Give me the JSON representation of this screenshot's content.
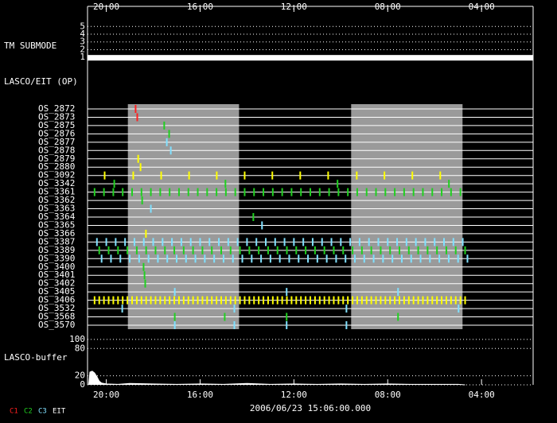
{
  "chart_data": {
    "type": "timeline",
    "xlim": [
      20.8,
      1.8
    ],
    "xticks": [
      {
        "value": 20,
        "label": "20:00"
      },
      {
        "value": 16,
        "label": "16:00"
      },
      {
        "value": 12,
        "label": "12:00"
      },
      {
        "value": 8,
        "label": "08:00"
      },
      {
        "value": 4,
        "label": "04:00"
      }
    ],
    "date_label": "2006/06/23 15:06:00.000",
    "submode": {
      "label": "TM SUBMODE",
      "ylim": [
        0.4,
        7.6
      ],
      "yticks": [
        1,
        2,
        3,
        4,
        5
      ],
      "segments": [
        {
          "start": 20.8,
          "end": 1.8,
          "value": 1
        }
      ],
      "color": "#ffffff"
    },
    "op": {
      "label": "LASCO/EIT (OP)",
      "shade_color": "#9a9a9a",
      "shaded": [
        [
          19.08,
          14.34
        ],
        [
          9.56,
          4.81
        ]
      ],
      "rows": [
        {
          "name": "OS_2872",
          "color": "#ff2020",
          "events": [
            18.75
          ]
        },
        {
          "name": "OS_2873",
          "color": "#ff2020",
          "events": [
            18.68
          ]
        },
        {
          "name": "OS_2875",
          "color": "#20d020",
          "events": [
            17.53
          ]
        },
        {
          "name": "OS_2876",
          "color": "#20d020",
          "events": [
            17.32
          ]
        },
        {
          "name": "OS_2877",
          "color": "#80e0ff",
          "events": [
            17.42
          ]
        },
        {
          "name": "OS_2878",
          "color": "#80e0ff",
          "events": [
            17.25
          ]
        },
        {
          "name": "OS_2879",
          "color": "#ffff00",
          "events": [
            18.64
          ]
        },
        {
          "name": "OS_2880",
          "color": "#ffff00",
          "events": [
            18.54
          ]
        },
        {
          "name": "OS_3092",
          "color": "#ffff00",
          "events": [
            20.07,
            18.85,
            17.66,
            16.47,
            15.29,
            14.1,
            12.92,
            11.73,
            10.54,
            9.32,
            8.14,
            6.95,
            5.76
          ]
        },
        {
          "name": "OS_3342",
          "color": "#20d020",
          "events": [
            19.66,
            14.92,
            10.14,
            5.39
          ]
        },
        {
          "name": "OS_3361",
          "color": "#20d020",
          "events": [
            20.5,
            20.1,
            19.7,
            19.3,
            18.9,
            18.5,
            18.1,
            17.7,
            17.3,
            16.9,
            16.5,
            16.1,
            15.7,
            15.3,
            14.9,
            14.5,
            14.1,
            13.7,
            13.3,
            12.9,
            12.5,
            12.1,
            11.7,
            11.3,
            10.9,
            10.5,
            10.1,
            9.7,
            9.3,
            8.9,
            8.5,
            8.1,
            7.7,
            7.3,
            6.9,
            6.5,
            6.1,
            5.7,
            5.3,
            4.9
          ]
        },
        {
          "name": "OS_3362",
          "color": "#20d020",
          "events": [
            18.47
          ]
        },
        {
          "name": "OS_3363",
          "color": "#80e0ff",
          "events": [
            18.1
          ]
        },
        {
          "name": "OS_3364",
          "color": "#20d020",
          "events": [
            13.73
          ]
        },
        {
          "name": "OS_3365",
          "color": "#80e0ff",
          "events": [
            13.36
          ]
        },
        {
          "name": "OS_3366",
          "color": "#ffff00",
          "events": [
            18.31
          ]
        },
        {
          "name": "OS_3387",
          "color": "#80e0ff",
          "events": [
            20.4,
            20.0,
            19.6,
            19.2,
            18.8,
            18.4,
            18.0,
            17.6,
            17.2,
            16.8,
            16.4,
            16.0,
            15.6,
            15.2,
            14.8,
            14.4,
            14.0,
            13.6,
            13.2,
            12.8,
            12.4,
            12.0,
            11.6,
            11.2,
            10.8,
            10.4,
            10.0,
            9.6,
            9.2,
            8.8,
            8.4,
            8.0,
            7.6,
            7.2,
            6.8,
            6.4,
            6.0,
            5.6,
            5.2,
            4.8
          ]
        },
        {
          "name": "OS_3389",
          "color": "#20d020",
          "events": [
            20.3,
            19.9,
            19.5,
            19.1,
            18.7,
            18.3,
            17.9,
            17.5,
            17.1,
            16.7,
            16.3,
            15.9,
            15.5,
            15.1,
            14.7,
            14.3,
            13.9,
            13.5,
            13.1,
            12.7,
            12.3,
            11.9,
            11.5,
            11.1,
            10.7,
            10.3,
            9.9,
            9.5,
            9.1,
            8.7,
            8.3,
            7.9,
            7.5,
            7.1,
            6.7,
            6.3,
            5.9,
            5.5,
            5.1,
            4.7
          ]
        },
        {
          "name": "OS_3390",
          "color": "#80e0ff",
          "events": [
            20.2,
            19.8,
            19.4,
            19.0,
            18.6,
            18.2,
            17.8,
            17.4,
            17.0,
            16.6,
            16.2,
            15.8,
            15.4,
            15.0,
            14.6,
            14.2,
            13.8,
            13.4,
            13.0,
            12.6,
            12.2,
            11.8,
            11.4,
            11.0,
            10.6,
            10.2,
            9.8,
            9.4,
            9.0,
            8.6,
            8.2,
            7.8,
            7.4,
            7.0,
            6.6,
            6.2,
            5.8,
            5.4,
            5.0,
            4.6
          ]
        },
        {
          "name": "OS_3400",
          "color": "#20d020",
          "events": [
            18.41
          ]
        },
        {
          "name": "OS_3401",
          "color": "#20d020",
          "events": [
            18.37
          ]
        },
        {
          "name": "OS_3402",
          "color": "#20d020",
          "events": [
            18.34
          ]
        },
        {
          "name": "OS_3405",
          "color": "#80e0ff",
          "events": [
            17.08,
            12.31,
            7.56
          ]
        },
        {
          "name": "OS_3406",
          "color": "#ffff00",
          "events": [
            20.5,
            20.3,
            20.1,
            19.9,
            19.7,
            19.5,
            19.3,
            19.1,
            18.9,
            18.7,
            18.5,
            18.3,
            18.1,
            17.9,
            17.7,
            17.5,
            17.3,
            17.1,
            16.9,
            16.7,
            16.5,
            16.3,
            16.1,
            15.9,
            15.7,
            15.5,
            15.3,
            15.1,
            14.9,
            14.7,
            14.5,
            14.3,
            14.1,
            13.9,
            13.7,
            13.5,
            13.3,
            13.1,
            12.9,
            12.7,
            12.5,
            12.3,
            12.1,
            11.9,
            11.7,
            11.5,
            11.3,
            11.1,
            10.9,
            10.7,
            10.5,
            10.3,
            10.1,
            9.9,
            9.7,
            9.5,
            9.3,
            9.1,
            8.9,
            8.7,
            8.5,
            8.3,
            8.1,
            7.9,
            7.7,
            7.5,
            7.3,
            7.1,
            6.9,
            6.7,
            6.5,
            6.3,
            6.1,
            5.9,
            5.7,
            5.5,
            5.3,
            5.1,
            4.9,
            4.7
          ]
        },
        {
          "name": "OS_3532",
          "color": "#80e0ff",
          "events": [
            19.32,
            14.54,
            9.76,
            4.98
          ]
        },
        {
          "name": "OS_3568",
          "color": "#20d020",
          "events": [
            17.08,
            14.95,
            12.31,
            7.56
          ]
        },
        {
          "name": "OS_3570",
          "color": "#80e0ff",
          "events": [
            17.08,
            14.54,
            12.31,
            9.76
          ]
        }
      ]
    },
    "buffer": {
      "label": "LASCO-buffer",
      "ylim": [
        0,
        112
      ],
      "yticks": [
        0,
        20,
        80,
        100
      ],
      "color": "#ffffff",
      "x": [
        20.75,
        20.7,
        20.6,
        20.5,
        20.4,
        20.3,
        20.2,
        20.0,
        19.5,
        19.0,
        18.0,
        17.0,
        16.0,
        15.0,
        14.0,
        13.0,
        12.0,
        11.0,
        10.0,
        9.0,
        8.0,
        7.0,
        6.0,
        5.0,
        4.7
      ],
      "values": [
        0,
        28,
        30,
        26,
        18,
        8,
        4,
        2,
        1,
        3,
        2,
        1,
        2,
        1,
        3,
        1,
        2,
        1,
        2,
        1,
        2,
        1,
        1,
        1,
        0
      ]
    },
    "legend": [
      {
        "name": "C1",
        "color": "#ff2020"
      },
      {
        "name": "C2",
        "color": "#20d020"
      },
      {
        "name": "C3",
        "color": "#80e0ff"
      },
      {
        "name": "EIT",
        "color": "#ffffff"
      }
    ]
  }
}
